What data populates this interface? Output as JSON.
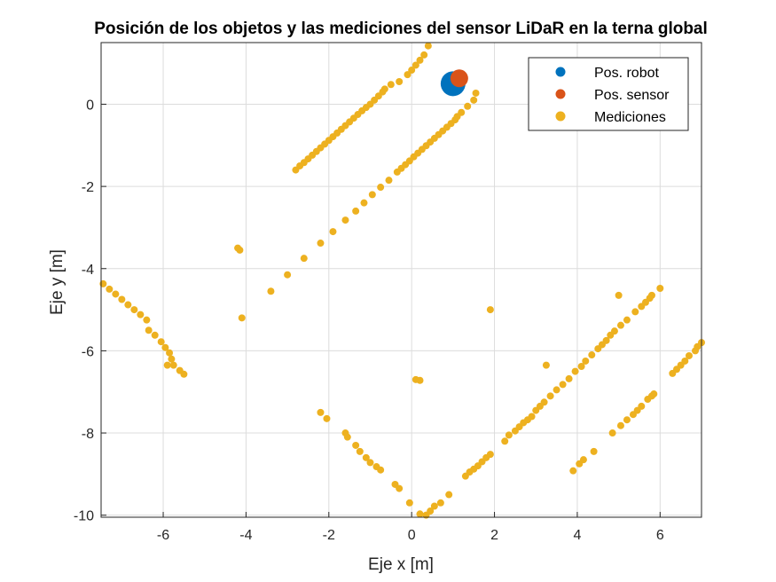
{
  "chart_data": {
    "type": "scatter",
    "title": "Posición de los objetos y las mediciones del sensor LiDaR en la terna global",
    "xlabel": "Eje x [m]",
    "ylabel": "Eje y [m]",
    "xlim": [
      -7.5,
      7
    ],
    "ylim": [
      -10.05,
      1.5
    ],
    "xticks": [
      -6,
      -4,
      -2,
      0,
      2,
      4,
      6
    ],
    "yticks": [
      -10,
      -8,
      -6,
      -4,
      -2,
      0
    ],
    "xtick_labels": [
      "-6",
      "-4",
      "-2",
      "0",
      "2",
      "4",
      "6"
    ],
    "ytick_labels": [
      "-10",
      "-8",
      "-6",
      "-4",
      "-2",
      "0"
    ],
    "grid": true,
    "legend_position": "top-right",
    "colors": {
      "robot": "#0072BD",
      "sensor": "#D95319",
      "mediciones": "#EDB120"
    },
    "series": [
      {
        "name": "Pos. robot",
        "marker_size": 28,
        "points": [
          [
            1.0,
            0.5
          ]
        ]
      },
      {
        "name": "Pos. sensor",
        "marker_size": 20,
        "points": [
          [
            1.15,
            0.63
          ]
        ]
      },
      {
        "name": "Mediciones",
        "marker_size": 8,
        "points": [
          [
            -2.8,
            -1.6
          ],
          [
            -2.6,
            -1.42
          ],
          [
            -2.4,
            -1.24
          ],
          [
            -2.2,
            -1.06
          ],
          [
            -2.0,
            -0.88
          ],
          [
            -1.8,
            -0.7
          ],
          [
            -1.6,
            -0.52
          ],
          [
            -1.4,
            -0.34
          ],
          [
            -1.2,
            -0.16
          ],
          [
            -1.0,
            0.0
          ],
          [
            -0.8,
            0.2
          ],
          [
            -0.65,
            0.37
          ],
          [
            -0.5,
            0.48
          ],
          [
            -0.3,
            0.55
          ],
          [
            -0.1,
            0.72
          ],
          [
            0.1,
            0.95
          ],
          [
            0.3,
            1.2
          ],
          [
            0.4,
            1.42
          ],
          [
            -2.7,
            -1.5
          ],
          [
            -2.5,
            -1.33
          ],
          [
            -2.3,
            -1.15
          ],
          [
            -2.1,
            -0.97
          ],
          [
            -1.9,
            -0.79
          ],
          [
            -1.7,
            -0.61
          ],
          [
            -1.5,
            -0.43
          ],
          [
            -1.3,
            -0.25
          ],
          [
            -1.1,
            -0.08
          ],
          [
            -0.9,
            0.1
          ],
          [
            -0.7,
            0.3
          ],
          [
            0.0,
            0.83
          ],
          [
            0.2,
            1.07
          ],
          [
            -4.2,
            -3.5
          ],
          [
            -4.15,
            -3.55
          ],
          [
            -4.1,
            -5.2
          ],
          [
            -3.4,
            -4.55
          ],
          [
            -3.0,
            -4.15
          ],
          [
            -2.6,
            -3.75
          ],
          [
            -2.2,
            -3.38
          ],
          [
            -1.9,
            -3.1
          ],
          [
            -1.6,
            -2.82
          ],
          [
            -1.35,
            -2.6
          ],
          [
            -1.15,
            -2.4
          ],
          [
            -0.95,
            -2.2
          ],
          [
            -0.75,
            -2.02
          ],
          [
            -0.55,
            -1.85
          ],
          [
            -0.35,
            -1.65
          ],
          [
            -0.15,
            -1.47
          ],
          [
            0.05,
            -1.28
          ],
          [
            0.25,
            -1.1
          ],
          [
            0.45,
            -0.92
          ],
          [
            0.65,
            -0.74
          ],
          [
            0.85,
            -0.56
          ],
          [
            1.05,
            -0.38
          ],
          [
            1.2,
            -0.2
          ],
          [
            1.35,
            -0.05
          ],
          [
            1.5,
            0.1
          ],
          [
            1.55,
            0.27
          ],
          [
            -0.25,
            -1.56
          ],
          [
            -0.05,
            -1.38
          ],
          [
            0.15,
            -1.19
          ],
          [
            0.35,
            -1.01
          ],
          [
            0.55,
            -0.83
          ],
          [
            0.75,
            -0.65
          ],
          [
            0.95,
            -0.47
          ],
          [
            1.1,
            -0.3
          ],
          [
            -7.45,
            -4.37
          ],
          [
            -7.3,
            -4.5
          ],
          [
            -7.15,
            -4.62
          ],
          [
            -7.0,
            -4.75
          ],
          [
            -6.85,
            -4.88
          ],
          [
            -6.7,
            -5.0
          ],
          [
            -6.55,
            -5.12
          ],
          [
            -6.4,
            -5.25
          ],
          [
            -6.35,
            -5.5
          ],
          [
            -6.2,
            -5.62
          ],
          [
            -6.05,
            -5.78
          ],
          [
            -5.95,
            -5.92
          ],
          [
            -5.85,
            -6.05
          ],
          [
            -5.8,
            -6.2
          ],
          [
            -5.75,
            -6.35
          ],
          [
            -5.6,
            -6.48
          ],
          [
            -5.5,
            -6.57
          ],
          [
            -5.9,
            -6.35
          ],
          [
            -2.2,
            -7.5
          ],
          [
            -2.05,
            -7.65
          ],
          [
            -1.6,
            -8.0
          ],
          [
            -1.55,
            -8.1
          ],
          [
            -1.35,
            -8.3
          ],
          [
            -1.25,
            -8.45
          ],
          [
            -1.1,
            -8.6
          ],
          [
            -1.0,
            -8.72
          ],
          [
            -0.85,
            -8.82
          ],
          [
            -0.75,
            -8.9
          ],
          [
            -0.4,
            -9.25
          ],
          [
            -0.3,
            -9.35
          ],
          [
            -0.05,
            -9.7
          ],
          [
            0.2,
            -9.97
          ],
          [
            0.35,
            -10.0
          ],
          [
            0.45,
            -9.9
          ],
          [
            0.55,
            -9.78
          ],
          [
            0.7,
            -9.7
          ],
          [
            0.9,
            -9.5
          ],
          [
            0.1,
            -6.7
          ],
          [
            0.2,
            -6.72
          ],
          [
            1.9,
            -5.0
          ],
          [
            3.25,
            -6.35
          ],
          [
            5.0,
            -4.65
          ],
          [
            1.3,
            -9.05
          ],
          [
            1.4,
            -8.95
          ],
          [
            1.5,
            -8.88
          ],
          [
            1.6,
            -8.8
          ],
          [
            1.7,
            -8.7
          ],
          [
            1.8,
            -8.6
          ],
          [
            1.9,
            -8.52
          ],
          [
            2.25,
            -8.2
          ],
          [
            2.35,
            -8.05
          ],
          [
            2.5,
            -7.95
          ],
          [
            2.6,
            -7.85
          ],
          [
            2.7,
            -7.75
          ],
          [
            2.8,
            -7.68
          ],
          [
            2.9,
            -7.6
          ],
          [
            3.0,
            -7.45
          ],
          [
            3.1,
            -7.35
          ],
          [
            3.2,
            -7.25
          ],
          [
            3.35,
            -7.1
          ],
          [
            3.5,
            -6.95
          ],
          [
            3.65,
            -6.82
          ],
          [
            3.8,
            -6.68
          ],
          [
            3.95,
            -6.5
          ],
          [
            4.1,
            -6.38
          ],
          [
            4.2,
            -6.25
          ],
          [
            4.35,
            -6.1
          ],
          [
            4.5,
            -5.95
          ],
          [
            4.6,
            -5.85
          ],
          [
            4.7,
            -5.75
          ],
          [
            4.8,
            -5.62
          ],
          [
            4.9,
            -5.52
          ],
          [
            5.05,
            -5.38
          ],
          [
            5.2,
            -5.25
          ],
          [
            5.4,
            -5.05
          ],
          [
            5.55,
            -4.92
          ],
          [
            5.65,
            -4.82
          ],
          [
            5.75,
            -4.72
          ],
          [
            5.8,
            -4.65
          ],
          [
            6.0,
            -4.48
          ],
          [
            3.9,
            -8.92
          ],
          [
            4.05,
            -8.75
          ],
          [
            4.15,
            -8.65
          ],
          [
            4.4,
            -8.45
          ],
          [
            4.85,
            -8.0
          ],
          [
            5.05,
            -7.82
          ],
          [
            5.2,
            -7.68
          ],
          [
            5.35,
            -7.55
          ],
          [
            5.45,
            -7.45
          ],
          [
            5.55,
            -7.35
          ],
          [
            5.7,
            -7.18
          ],
          [
            5.8,
            -7.1
          ],
          [
            5.85,
            -7.05
          ],
          [
            6.3,
            -6.55
          ],
          [
            6.4,
            -6.45
          ],
          [
            6.5,
            -6.35
          ],
          [
            6.6,
            -6.25
          ],
          [
            6.7,
            -6.12
          ],
          [
            6.85,
            -6.0
          ],
          [
            6.9,
            -5.9
          ],
          [
            7.0,
            -5.8
          ]
        ]
      }
    ]
  }
}
